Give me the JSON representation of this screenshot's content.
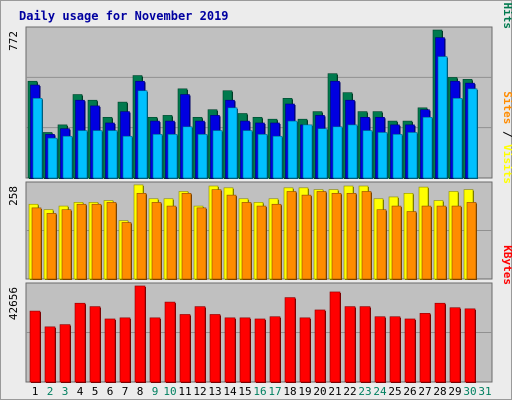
{
  "colors": {
    "background": "#ececec",
    "panel": "#c0c0c0",
    "grid": "#909090",
    "title": "#0000a0",
    "hits": "#007a4e",
    "files": "#0000e0",
    "pages": "#00c0ff",
    "visits": "#ffff00",
    "sites": "#ff8c00",
    "kbytes": "#ff0000",
    "weekday": "#000000",
    "weekend": "#008060"
  },
  "chart_data": {
    "type": "bar",
    "title": "Daily usage for November 2019",
    "categories": [
      "1",
      "2",
      "3",
      "4",
      "5",
      "6",
      "7",
      "8",
      "9",
      "10",
      "11",
      "12",
      "13",
      "14",
      "15",
      "16",
      "17",
      "18",
      "19",
      "20",
      "21",
      "22",
      "23",
      "24",
      "25",
      "26",
      "27",
      "28",
      "29",
      "30",
      "31"
    ],
    "weekend_days": [
      "2",
      "3",
      "9",
      "10",
      "16",
      "17",
      "23",
      "24",
      "30",
      "31"
    ],
    "panels": [
      {
        "id": "hits",
        "max_label": "772",
        "ylim": [
          0,
          772
        ],
        "legend": [
          {
            "text": "Pages",
            "color": "#00c0ff"
          },
          {
            "text": " / ",
            "color": "#000000"
          },
          {
            "text": "Files",
            "color": "#0000e0"
          },
          {
            "text": " / ",
            "color": "#000000"
          },
          {
            "text": "Hits",
            "color": "#007a4e"
          }
        ],
        "series": [
          {
            "name": "Hits",
            "color": "#007a4e",
            "values": [
              510,
              240,
              280,
              440,
              410,
              320,
              400,
              540,
              320,
              330,
              470,
              320,
              360,
              460,
              340,
              320,
              310,
              420,
              310,
              350,
              550,
              450,
              350,
              350,
              300,
              300,
              370,
              780,
              530,
              520,
              null
            ]
          },
          {
            "name": "Files",
            "color": "#0000e0",
            "values": [
              490,
              230,
              260,
              410,
              380,
              290,
              350,
              510,
              300,
              300,
              440,
              300,
              330,
              410,
              300,
              290,
              290,
              390,
              280,
              330,
              510,
              410,
              320,
              320,
              280,
              280,
              360,
              740,
              510,
              500,
              null
            ]
          },
          {
            "name": "Pages",
            "color": "#00c0ff",
            "values": [
              420,
              210,
              220,
              250,
              250,
              250,
              220,
              460,
              230,
              230,
              270,
              230,
              250,
              370,
              250,
              230,
              220,
              300,
              280,
              260,
              270,
              280,
              250,
              240,
              230,
              240,
              320,
              640,
              420,
              470,
              null
            ]
          }
        ]
      },
      {
        "id": "visits",
        "max_label": "258",
        "ylim": [
          0,
          258
        ],
        "legend": [
          {
            "text": "Sites",
            "color": "#ff8c00"
          },
          {
            "text": " / ",
            "color": "#000000"
          },
          {
            "text": "Visits",
            "color": "#ffff00"
          }
        ],
        "series": [
          {
            "name": "Visits",
            "color": "#ffff00",
            "values": [
              205,
              190,
              200,
              210,
              210,
              215,
              160,
              258,
              220,
              220,
              240,
              200,
              255,
              250,
              220,
              210,
              220,
              250,
              250,
              245,
              245,
              255,
              255,
              220,
              225,
              235,
              252,
              215,
              240,
              245,
              null
            ]
          },
          {
            "name": "Sites",
            "color": "#ff8c00",
            "values": [
              195,
              180,
              190,
              205,
              205,
              210,
              155,
              235,
              210,
              200,
              235,
              195,
              245,
              230,
              210,
              200,
              205,
              240,
              230,
              240,
              235,
              235,
              240,
              190,
              200,
              185,
              200,
              200,
              200,
              210,
              null
            ]
          }
        ]
      },
      {
        "id": "kbytes",
        "max_label": "42656",
        "ylim": [
          0,
          42656
        ],
        "legend": [
          {
            "text": "KBytes",
            "color": "#ff0000"
          }
        ],
        "series": [
          {
            "name": "KBytes",
            "color": "#ff0000",
            "values": [
              31500,
              24500,
              25500,
              35000,
              33500,
              28000,
              28500,
              42656,
              28500,
              35500,
              30000,
              33500,
              30000,
              28500,
              28500,
              28000,
              29000,
              37500,
              28500,
              32000,
              40000,
              33500,
              33500,
              29000,
              29000,
              28000,
              30500,
              35000,
              33000,
              32500,
              null
            ]
          }
        ]
      }
    ]
  }
}
